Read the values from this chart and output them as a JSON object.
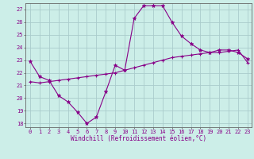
{
  "xlabel": "Windchill (Refroidissement éolien,°C)",
  "background_color": "#cceee8",
  "grid_color": "#aacccc",
  "line_color": "#880088",
  "xlim": [
    -0.5,
    23.4
  ],
  "ylim": [
    17.7,
    27.5
  ],
  "yticks": [
    18,
    19,
    20,
    21,
    22,
    23,
    24,
    25,
    26,
    27
  ],
  "xticks": [
    0,
    1,
    2,
    3,
    4,
    5,
    6,
    7,
    8,
    9,
    10,
    11,
    12,
    13,
    14,
    15,
    16,
    17,
    18,
    19,
    20,
    21,
    22,
    23
  ],
  "line1_x": [
    0,
    1,
    2,
    3,
    4,
    5,
    6,
    7,
    8,
    9,
    10,
    11,
    12,
    13,
    14,
    15,
    16,
    17,
    18,
    19,
    20,
    21,
    22,
    23
  ],
  "line1_y": [
    22.9,
    21.7,
    21.4,
    20.2,
    19.7,
    18.9,
    18.0,
    18.5,
    20.5,
    22.6,
    22.2,
    26.3,
    27.3,
    27.3,
    27.3,
    26.0,
    24.9,
    24.3,
    23.8,
    23.6,
    23.8,
    23.8,
    23.6,
    23.1
  ],
  "line2_x": [
    0,
    1,
    2,
    3,
    4,
    5,
    6,
    7,
    8,
    9,
    10,
    11,
    12,
    13,
    14,
    15,
    16,
    17,
    18,
    19,
    20,
    21,
    22,
    23
  ],
  "line2_y": [
    21.3,
    21.2,
    21.3,
    21.4,
    21.5,
    21.6,
    21.7,
    21.8,
    21.9,
    22.0,
    22.2,
    22.4,
    22.6,
    22.8,
    23.0,
    23.2,
    23.3,
    23.4,
    23.5,
    23.6,
    23.6,
    23.7,
    23.8,
    22.8
  ],
  "tick_fontsize": 5.0,
  "xlabel_fontsize": 5.5
}
